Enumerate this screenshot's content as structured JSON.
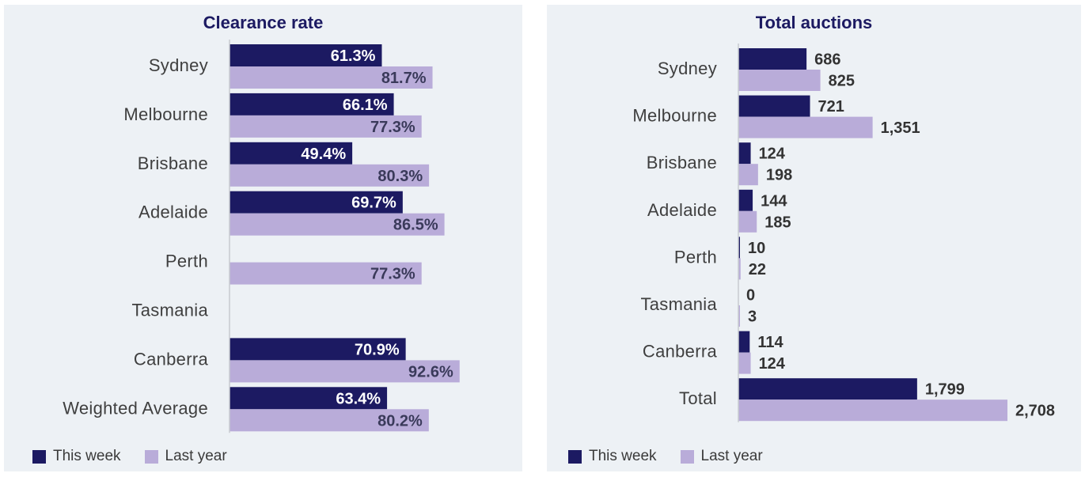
{
  "colors": {
    "this_week": "#1c1a62",
    "last_year": "#b9acd9",
    "panel_bg": "#edf1f5",
    "axis": "#c8cbd0",
    "label": "#3f3f3f"
  },
  "legend": {
    "this_week": "This week",
    "last_year": "Last year"
  },
  "chart_data": [
    {
      "type": "bar",
      "orientation": "horizontal",
      "title": "Clearance rate",
      "categories": [
        "Sydney",
        "Melbourne",
        "Brisbane",
        "Adelaide",
        "Perth",
        "Tasmania",
        "Canberra",
        "Weighted Average"
      ],
      "series": [
        {
          "name": "This week",
          "values": [
            61.3,
            66.1,
            49.4,
            69.7,
            null,
            null,
            70.9,
            63.4
          ],
          "labels": [
            "61.3%",
            "66.1%",
            "49.4%",
            "69.7%",
            "",
            "",
            "70.9%",
            "63.4%"
          ]
        },
        {
          "name": "Last year",
          "values": [
            81.7,
            77.3,
            80.3,
            86.5,
            77.3,
            null,
            92.6,
            80.2
          ],
          "labels": [
            "81.7%",
            "77.3%",
            "80.3%",
            "86.5%",
            "77.3%",
            "",
            "92.6%",
            "80.2%"
          ]
        }
      ],
      "xlim": [
        0,
        100
      ],
      "grid": false,
      "legend_position": "bottom-left",
      "data_labels": "inside-end"
    },
    {
      "type": "bar",
      "orientation": "horizontal",
      "title": "Total auctions",
      "categories": [
        "Sydney",
        "Melbourne",
        "Brisbane",
        "Adelaide",
        "Perth",
        "Tasmania",
        "Canberra",
        "Total"
      ],
      "series": [
        {
          "name": "This week",
          "values": [
            686,
            721,
            124,
            144,
            10,
            0,
            114,
            1799
          ],
          "labels": [
            "686",
            "721",
            "124",
            "144",
            "10",
            "0",
            "114",
            "1,799"
          ]
        },
        {
          "name": "Last year",
          "values": [
            825,
            1351,
            198,
            185,
            22,
            3,
            124,
            2708
          ],
          "labels": [
            "825",
            "1,351",
            "198",
            "185",
            "22",
            "3",
            "124",
            "2,708"
          ]
        }
      ],
      "xlim": [
        0,
        2708
      ],
      "grid": false,
      "legend_position": "bottom-left",
      "data_labels": "outside-end"
    }
  ]
}
